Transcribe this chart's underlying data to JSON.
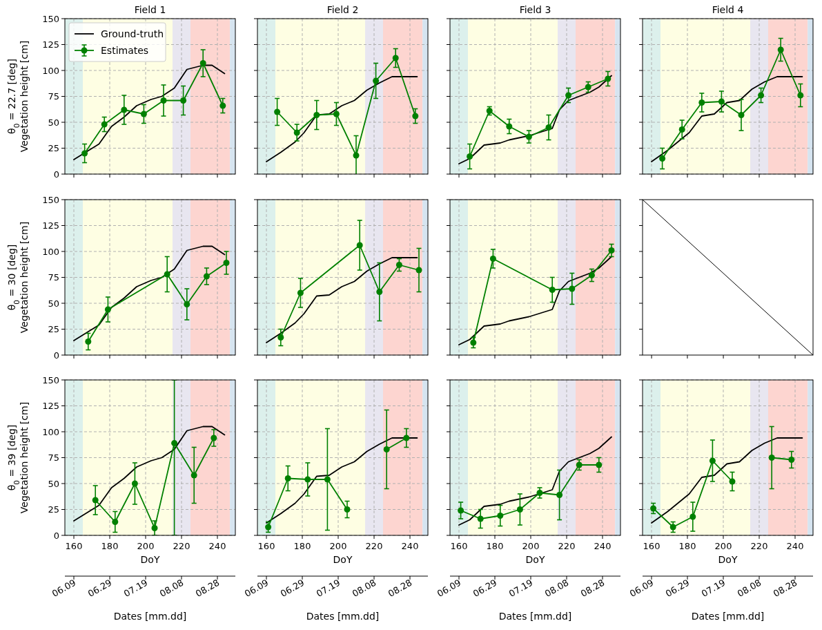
{
  "chart_data": [
    {
      "type": "line",
      "title": "Field 1",
      "ylabel": "θ$_{0}$ = 22.7 [deg]\nVegetation height [cm]",
      "xlim": [
        155,
        250
      ],
      "ylim": [
        0,
        150
      ],
      "xticks": [
        160,
        180,
        200,
        220,
        240
      ],
      "yticks": [
        0,
        25,
        50,
        75,
        100,
        125,
        150
      ],
      "grid": true,
      "tick_labels": "y",
      "legend": "top left",
      "bands": [
        {
          "axis": "x",
          "from": 155,
          "to": 165,
          "color": "#dcf0ec"
        },
        {
          "axis": "x",
          "from": 165,
          "to": 215,
          "color": "#fefee3"
        },
        {
          "axis": "x",
          "from": 215,
          "to": 225,
          "color": "#e8e6f0"
        },
        {
          "axis": "x",
          "from": 225,
          "to": 247,
          "color": "#fdd5d0"
        },
        {
          "axis": "x",
          "from": 247,
          "to": 250,
          "color": "#d6e4f0"
        }
      ],
      "series": [
        {
          "name": "Ground-truth",
          "color": "#000000",
          "x": [
            160,
            174,
            181,
            188,
            195,
            203,
            209,
            216,
            223,
            232,
            237,
            244
          ],
          "values": [
            14,
            29,
            46,
            55,
            66,
            72,
            75,
            83,
            101,
            105,
            105,
            97
          ]
        },
        {
          "name": "Estimates",
          "color": "#008000",
          "marker": "circle",
          "x": [
            166,
            177,
            188,
            199,
            210,
            221,
            232,
            243
          ],
          "values": [
            20,
            48,
            62,
            58,
            71,
            71,
            107,
            66
          ],
          "errors": [
            9,
            7,
            14,
            9,
            15,
            14,
            13,
            7
          ]
        }
      ]
    },
    {
      "type": "line",
      "title": "Field 2",
      "xlim": [
        155,
        250
      ],
      "ylim": [
        0,
        150
      ],
      "xticks": [
        160,
        180,
        200,
        220,
        240
      ],
      "yticks": [
        0,
        25,
        50,
        75,
        100,
        125,
        150
      ],
      "grid": true,
      "tick_labels": false,
      "bands": [
        {
          "axis": "x",
          "from": 155,
          "to": 165,
          "color": "#dcf0ec"
        },
        {
          "axis": "x",
          "from": 165,
          "to": 215,
          "color": "#fefee3"
        },
        {
          "axis": "x",
          "from": 215,
          "to": 225,
          "color": "#e8e6f0"
        },
        {
          "axis": "x",
          "from": 225,
          "to": 247,
          "color": "#fdd5d0"
        },
        {
          "axis": "x",
          "from": 247,
          "to": 250,
          "color": "#d6e4f0"
        }
      ],
      "series": [
        {
          "color": "#000000",
          "x": [
            160,
            168,
            176,
            181,
            188,
            195,
            202,
            209,
            216,
            223,
            230,
            244
          ],
          "values": [
            12,
            21,
            31,
            40,
            57,
            58,
            66,
            71,
            81,
            88,
            94,
            94
          ]
        },
        {
          "color": "#008000",
          "marker": "circle",
          "x": [
            166,
            177,
            188,
            199,
            210,
            221,
            232,
            243
          ],
          "values": [
            60,
            40,
            57,
            58,
            18,
            90,
            112,
            56
          ],
          "errors": [
            13,
            8,
            14,
            11,
            19,
            17,
            9,
            7
          ]
        }
      ]
    },
    {
      "type": "line",
      "title": "Field 3",
      "xlim": [
        155,
        250
      ],
      "ylim": [
        0,
        150
      ],
      "xticks": [
        160,
        180,
        200,
        220,
        240
      ],
      "yticks": [
        0,
        25,
        50,
        75,
        100,
        125,
        150
      ],
      "grid": true,
      "tick_labels": false,
      "bands": [
        {
          "axis": "x",
          "from": 155,
          "to": 165,
          "color": "#dcf0ec"
        },
        {
          "axis": "x",
          "from": 165,
          "to": 215,
          "color": "#fefee3"
        },
        {
          "axis": "x",
          "from": 215,
          "to": 225,
          "color": "#e8e6f0"
        },
        {
          "axis": "x",
          "from": 225,
          "to": 247,
          "color": "#fdd5d0"
        },
        {
          "axis": "x",
          "from": 247,
          "to": 250,
          "color": "#d6e4f0"
        }
      ],
      "series": [
        {
          "color": "#000000",
          "x": [
            160,
            166,
            174,
            183,
            188,
            199,
            212,
            216,
            221,
            233,
            238,
            245
          ],
          "values": [
            10,
            15,
            28,
            30,
            33,
            37,
            44,
            62,
            71,
            79,
            84,
            95
          ]
        },
        {
          "color": "#008000",
          "marker": "circle",
          "x": [
            166,
            177,
            188,
            199,
            210,
            221,
            232,
            243
          ],
          "values": [
            17,
            61,
            46,
            36,
            45,
            76,
            84,
            92
          ],
          "errors": [
            12,
            4,
            7,
            6,
            12,
            7,
            5,
            7
          ]
        }
      ]
    },
    {
      "type": "line",
      "title": "Field 4",
      "xlim": [
        155,
        250
      ],
      "ylim": [
        0,
        150
      ],
      "xticks": [
        160,
        180,
        200,
        220,
        240
      ],
      "yticks": [
        0,
        25,
        50,
        75,
        100,
        125,
        150
      ],
      "grid": true,
      "tick_labels": false,
      "bands": [
        {
          "axis": "x",
          "from": 155,
          "to": 165,
          "color": "#dcf0ec"
        },
        {
          "axis": "x",
          "from": 165,
          "to": 215,
          "color": "#fefee3"
        },
        {
          "axis": "x",
          "from": 215,
          "to": 225,
          "color": "#e8e6f0"
        },
        {
          "axis": "x",
          "from": 225,
          "to": 247,
          "color": "#fdd5d0"
        },
        {
          "axis": "x",
          "from": 247,
          "to": 250,
          "color": "#d6e4f0"
        }
      ],
      "series": [
        {
          "color": "#000000",
          "x": [
            160,
            169,
            181,
            188,
            195,
            202,
            209,
            216,
            223,
            230,
            244
          ],
          "values": [
            12,
            23,
            40,
            56,
            58,
            69,
            71,
            82,
            89,
            94,
            94
          ]
        },
        {
          "color": "#008000",
          "marker": "circle",
          "x": [
            166,
            177,
            188,
            199,
            210,
            221,
            232,
            243
          ],
          "values": [
            15,
            43,
            69,
            70,
            57,
            76,
            120,
            76
          ],
          "errors": [
            10,
            9,
            9,
            10,
            15,
            7,
            11,
            11
          ]
        }
      ]
    },
    {
      "type": "line",
      "ylabel": "θ$_{0}$ = 30 [deg]\nVegetation height [cm]",
      "xlim": [
        155,
        250
      ],
      "ylim": [
        0,
        150
      ],
      "xticks": [
        160,
        180,
        200,
        220,
        240
      ],
      "yticks": [
        0,
        25,
        50,
        75,
        100,
        125,
        150
      ],
      "grid": true,
      "tick_labels": "y",
      "bands": [
        {
          "axis": "x",
          "from": 155,
          "to": 165,
          "color": "#dcf0ec"
        },
        {
          "axis": "x",
          "from": 165,
          "to": 215,
          "color": "#fefee3"
        },
        {
          "axis": "x",
          "from": 215,
          "to": 225,
          "color": "#e8e6f0"
        },
        {
          "axis": "x",
          "from": 225,
          "to": 247,
          "color": "#fdd5d0"
        },
        {
          "axis": "x",
          "from": 247,
          "to": 250,
          "color": "#d6e4f0"
        }
      ],
      "series": [
        {
          "color": "#000000",
          "x": [
            160,
            174,
            181,
            188,
            195,
            203,
            209,
            216,
            223,
            232,
            237,
            244
          ],
          "values": [
            14,
            29,
            46,
            55,
            66,
            72,
            75,
            83,
            101,
            105,
            105,
            97
          ]
        },
        {
          "color": "#008000",
          "marker": "circle",
          "x": [
            168,
            179,
            212,
            223,
            234,
            245
          ],
          "values": [
            13,
            44,
            78,
            49,
            76,
            89
          ],
          "errors": [
            8,
            12,
            17,
            15,
            8,
            11
          ]
        }
      ]
    },
    {
      "type": "line",
      "xlim": [
        155,
        250
      ],
      "ylim": [
        0,
        150
      ],
      "xticks": [
        160,
        180,
        200,
        220,
        240
      ],
      "yticks": [
        0,
        25,
        50,
        75,
        100,
        125,
        150
      ],
      "grid": true,
      "tick_labels": false,
      "bands": [
        {
          "axis": "x",
          "from": 155,
          "to": 165,
          "color": "#dcf0ec"
        },
        {
          "axis": "x",
          "from": 165,
          "to": 215,
          "color": "#fefee3"
        },
        {
          "axis": "x",
          "from": 215,
          "to": 225,
          "color": "#e8e6f0"
        },
        {
          "axis": "x",
          "from": 225,
          "to": 247,
          "color": "#fdd5d0"
        },
        {
          "axis": "x",
          "from": 247,
          "to": 250,
          "color": "#d6e4f0"
        }
      ],
      "series": [
        {
          "color": "#000000",
          "x": [
            160,
            168,
            176,
            181,
            188,
            195,
            202,
            209,
            216,
            223,
            230,
            244
          ],
          "values": [
            12,
            21,
            31,
            40,
            57,
            58,
            66,
            71,
            81,
            88,
            94,
            94
          ]
        },
        {
          "color": "#008000",
          "marker": "circle",
          "x": [
            168,
            179,
            212,
            223,
            234,
            245
          ],
          "values": [
            17,
            60,
            106,
            61,
            87,
            82
          ],
          "errors": [
            8,
            14,
            24,
            28,
            6,
            21
          ]
        }
      ]
    },
    {
      "type": "line",
      "xlim": [
        155,
        250
      ],
      "ylim": [
        0,
        150
      ],
      "xticks": [
        160,
        180,
        200,
        220,
        240
      ],
      "yticks": [
        0,
        25,
        50,
        75,
        100,
        125,
        150
      ],
      "grid": true,
      "tick_labels": false,
      "bands": [
        {
          "axis": "x",
          "from": 155,
          "to": 165,
          "color": "#dcf0ec"
        },
        {
          "axis": "x",
          "from": 165,
          "to": 215,
          "color": "#fefee3"
        },
        {
          "axis": "x",
          "from": 215,
          "to": 225,
          "color": "#e8e6f0"
        },
        {
          "axis": "x",
          "from": 225,
          "to": 247,
          "color": "#fdd5d0"
        },
        {
          "axis": "x",
          "from": 247,
          "to": 250,
          "color": "#d6e4f0"
        }
      ],
      "series": [
        {
          "color": "#000000",
          "x": [
            160,
            166,
            174,
            183,
            188,
            199,
            212,
            216,
            221,
            233,
            238,
            245
          ],
          "values": [
            10,
            15,
            28,
            30,
            33,
            37,
            44,
            62,
            71,
            79,
            84,
            95
          ]
        },
        {
          "color": "#008000",
          "marker": "circle",
          "x": [
            168,
            179,
            212,
            223,
            234,
            245
          ],
          "values": [
            12,
            93,
            63,
            64,
            77,
            101
          ],
          "errors": [
            5,
            9,
            12,
            15,
            6,
            6
          ]
        }
      ]
    },
    {
      "type": "other"
    },
    {
      "type": "line",
      "ylabel": "θ$_{0}$ = 39 [deg]\nVegetation height [cm]",
      "xlabel": "DoY",
      "x2label": "Dates [mm.dd]",
      "xlim": [
        155,
        250
      ],
      "ylim": [
        0,
        150
      ],
      "xticks": [
        160,
        180,
        200,
        220,
        240
      ],
      "yticks": [
        0,
        25,
        50,
        75,
        100,
        125,
        150
      ],
      "x2lim": [
        "--06-04",
        "--09-07"
      ],
      "x2ticks": [
        {
          "value": "--06-09",
          "label": "06.09"
        },
        {
          "value": "--06-29",
          "label": "06.29"
        },
        {
          "value": "--07-19",
          "label": "07.19"
        },
        {
          "value": "--08-08",
          "label": "08.08"
        },
        {
          "value": "--08-28",
          "label": "08.28"
        }
      ],
      "grid": true,
      "bands": [
        {
          "axis": "x",
          "from": 155,
          "to": 165,
          "color": "#dcf0ec"
        },
        {
          "axis": "x",
          "from": 165,
          "to": 215,
          "color": "#fefee3"
        },
        {
          "axis": "x",
          "from": 215,
          "to": 225,
          "color": "#e8e6f0"
        },
        {
          "axis": "x",
          "from": 225,
          "to": 247,
          "color": "#fdd5d0"
        },
        {
          "axis": "x",
          "from": 247,
          "to": 250,
          "color": "#d6e4f0"
        }
      ],
      "series": [
        {
          "color": "#000000",
          "x": [
            160,
            174,
            181,
            188,
            195,
            203,
            209,
            216,
            223,
            232,
            237,
            244
          ],
          "values": [
            14,
            29,
            46,
            55,
            66,
            72,
            75,
            83,
            101,
            105,
            105,
            97
          ]
        },
        {
          "color": "#008000",
          "marker": "circle",
          "x": [
            172,
            183,
            194,
            205,
            216,
            227,
            238
          ],
          "values": [
            34,
            13,
            50,
            7,
            89,
            58,
            94
          ],
          "errors": [
            14,
            10,
            20,
            7,
            [
              0,
              150
            ],
            27,
            8
          ]
        }
      ]
    },
    {
      "type": "line",
      "xlabel": "DoY",
      "x2label": "Dates [mm.dd]",
      "xlim": [
        155,
        250
      ],
      "ylim": [
        0,
        150
      ],
      "xticks": [
        160,
        180,
        200,
        220,
        240
      ],
      "yticks": [
        0,
        25,
        50,
        75,
        100,
        125,
        150
      ],
      "x2lim": [
        "--06-04",
        "--09-07"
      ],
      "x2ticks": [
        {
          "value": "--06-09",
          "label": "06.09"
        },
        {
          "value": "--06-29",
          "label": "06.29"
        },
        {
          "value": "--07-19",
          "label": "07.19"
        },
        {
          "value": "--08-08",
          "label": "08.08"
        },
        {
          "value": "--08-28",
          "label": "08.28"
        }
      ],
      "grid": true,
      "tick_labels": "x",
      "bands": [
        {
          "axis": "x",
          "from": 155,
          "to": 165,
          "color": "#dcf0ec"
        },
        {
          "axis": "x",
          "from": 165,
          "to": 215,
          "color": "#fefee3"
        },
        {
          "axis": "x",
          "from": 215,
          "to": 225,
          "color": "#e8e6f0"
        },
        {
          "axis": "x",
          "from": 225,
          "to": 247,
          "color": "#fdd5d0"
        },
        {
          "axis": "x",
          "from": 247,
          "to": 250,
          "color": "#d6e4f0"
        }
      ],
      "series": [
        {
          "color": "#000000",
          "x": [
            160,
            168,
            176,
            181,
            188,
            195,
            202,
            209,
            216,
            223,
            230,
            244
          ],
          "values": [
            12,
            21,
            31,
            40,
            57,
            58,
            66,
            71,
            81,
            88,
            94,
            94
          ]
        },
        {
          "color": "#008000",
          "marker": "circle",
          "x": [
            161,
            172,
            183,
            194,
            205,
            216,
            227,
            238
          ],
          "values": [
            8,
            55,
            54,
            54,
            25,
            null,
            83,
            94
          ],
          "errors": [
            5,
            12,
            16,
            49,
            8,
            null,
            38,
            9
          ]
        }
      ]
    },
    {
      "type": "line",
      "xlabel": "DoY",
      "x2label": "Dates [mm.dd]",
      "xlim": [
        155,
        250
      ],
      "ylim": [
        0,
        150
      ],
      "xticks": [
        160,
        180,
        200,
        220,
        240
      ],
      "yticks": [
        0,
        25,
        50,
        75,
        100,
        125,
        150
      ],
      "x2lim": [
        "--06-04",
        "--09-07"
      ],
      "x2ticks": [
        {
          "value": "--06-09",
          "label": "06.09"
        },
        {
          "value": "--06-29",
          "label": "06.29"
        },
        {
          "value": "--07-19",
          "label": "07.19"
        },
        {
          "value": "--08-08",
          "label": "08.08"
        },
        {
          "value": "--08-28",
          "label": "08.28"
        }
      ],
      "grid": true,
      "tick_labels": "x",
      "bands": [
        {
          "axis": "x",
          "from": 155,
          "to": 165,
          "color": "#dcf0ec"
        },
        {
          "axis": "x",
          "from": 165,
          "to": 215,
          "color": "#fefee3"
        },
        {
          "axis": "x",
          "from": 215,
          "to": 225,
          "color": "#e8e6f0"
        },
        {
          "axis": "x",
          "from": 225,
          "to": 247,
          "color": "#fdd5d0"
        },
        {
          "axis": "x",
          "from": 247,
          "to": 250,
          "color": "#d6e4f0"
        }
      ],
      "series": [
        {
          "color": "#000000",
          "x": [
            160,
            166,
            174,
            183,
            188,
            199,
            212,
            216,
            221,
            233,
            238,
            245
          ],
          "values": [
            10,
            15,
            28,
            30,
            33,
            37,
            44,
            62,
            71,
            79,
            84,
            95
          ]
        },
        {
          "color": "#008000",
          "marker": "circle",
          "x": [
            161,
            172,
            183,
            194,
            205,
            216,
            227,
            238
          ],
          "values": [
            24,
            16,
            19,
            25,
            41,
            39,
            68,
            68
          ],
          "errors": [
            8,
            9,
            10,
            15,
            5,
            24,
            5,
            7
          ]
        }
      ]
    },
    {
      "type": "line",
      "xlabel": "DoY",
      "x2label": "Dates [mm.dd]",
      "xlim": [
        155,
        250
      ],
      "ylim": [
        0,
        150
      ],
      "xticks": [
        160,
        180,
        200,
        220,
        240
      ],
      "yticks": [
        0,
        25,
        50,
        75,
        100,
        125,
        150
      ],
      "x2lim": [
        "--06-04",
        "--09-07"
      ],
      "x2ticks": [
        {
          "value": "--06-09",
          "label": "06.09"
        },
        {
          "value": "--06-29",
          "label": "06.29"
        },
        {
          "value": "--07-19",
          "label": "07.19"
        },
        {
          "value": "--08-08",
          "label": "08.08"
        },
        {
          "value": "--08-28",
          "label": "08.28"
        }
      ],
      "grid": true,
      "tick_labels": "x",
      "bands": [
        {
          "axis": "x",
          "from": 155,
          "to": 165,
          "color": "#dcf0ec"
        },
        {
          "axis": "x",
          "from": 165,
          "to": 215,
          "color": "#fefee3"
        },
        {
          "axis": "x",
          "from": 215,
          "to": 225,
          "color": "#e8e6f0"
        },
        {
          "axis": "x",
          "from": 225,
          "to": 247,
          "color": "#fdd5d0"
        },
        {
          "axis": "x",
          "from": 247,
          "to": 250,
          "color": "#d6e4f0"
        }
      ],
      "series": [
        {
          "color": "#000000",
          "x": [
            160,
            169,
            181,
            188,
            195,
            202,
            209,
            216,
            223,
            230,
            244
          ],
          "values": [
            12,
            23,
            40,
            56,
            58,
            69,
            71,
            82,
            89,
            94,
            94
          ]
        },
        {
          "color": "#008000",
          "marker": "circle",
          "x": [
            161,
            172,
            183,
            194,
            205,
            216,
            227,
            238
          ],
          "values": [
            26,
            8,
            18,
            72,
            52,
            null,
            75,
            73
          ],
          "errors": [
            5,
            5,
            14,
            20,
            9,
            null,
            30,
            8
          ]
        }
      ]
    }
  ]
}
